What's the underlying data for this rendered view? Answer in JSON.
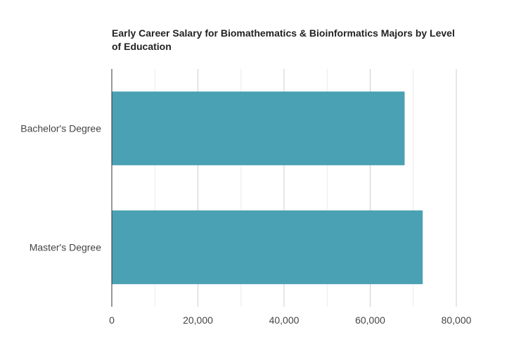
{
  "chart_data": {
    "type": "bar",
    "orientation": "horizontal",
    "title": "Early Career Salary for Biomathematics & Bioinformatics Majors by Level of Education",
    "categories": [
      "Bachelor's Degree",
      "Master's Degree"
    ],
    "values": [
      68000,
      72200
    ],
    "xlim": [
      0,
      80000
    ],
    "x_ticks": [
      0,
      20000,
      40000,
      60000,
      80000
    ],
    "x_tick_labels": [
      "0",
      "20,000",
      "40,000",
      "60,000",
      "80,000"
    ],
    "grid": true,
    "legend": "none",
    "bar_color": "#4aa1b3",
    "xlabel": "",
    "ylabel": ""
  }
}
